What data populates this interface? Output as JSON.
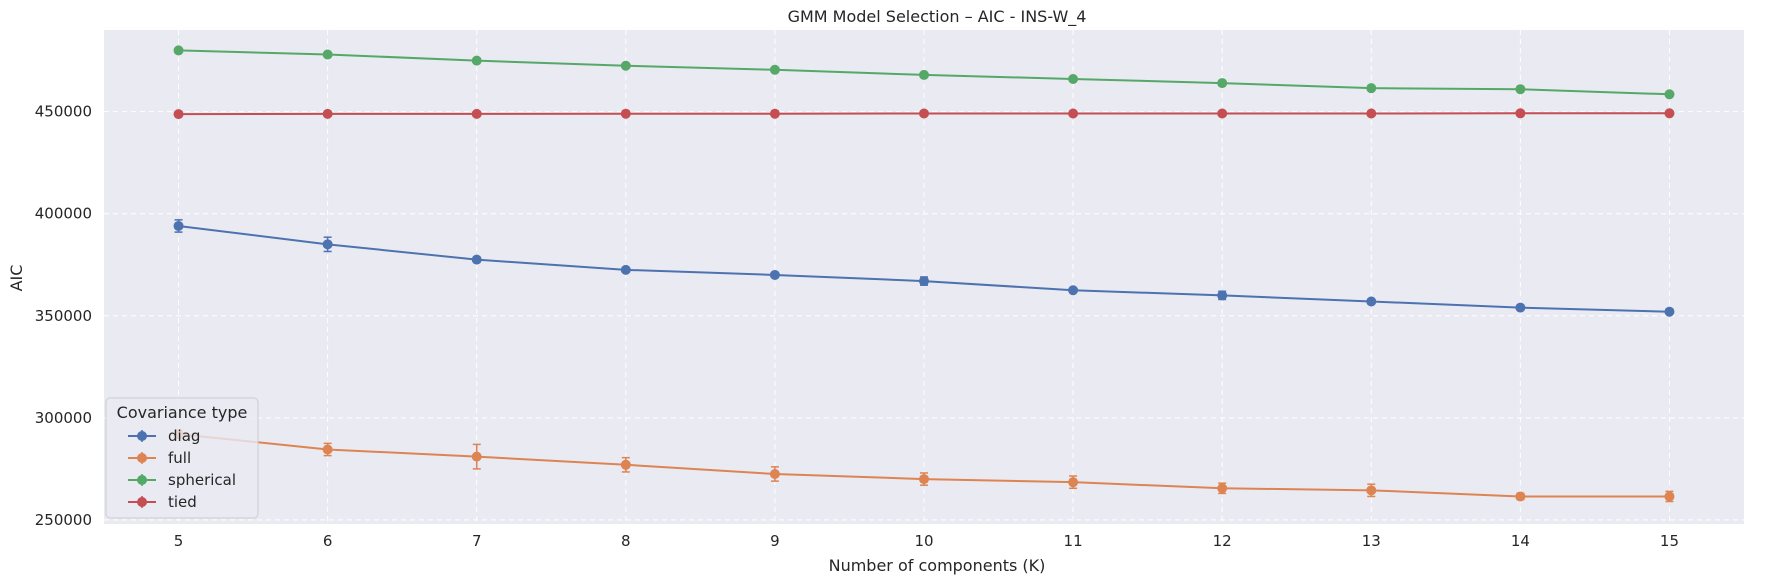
{
  "chart_data": {
    "type": "line",
    "title": "GMM Model Selection – AIC - INS-W_4",
    "xlabel": "Number of components (K)",
    "ylabel": "AIC",
    "x": [
      5,
      6,
      7,
      8,
      9,
      10,
      11,
      12,
      13,
      14,
      15
    ],
    "xlim": [
      4.5,
      15.5
    ],
    "ylim": [
      248000,
      490000
    ],
    "yticks": [
      250000,
      300000,
      350000,
      400000,
      450000
    ],
    "grid": true,
    "legend_title": "Covariance type",
    "legend_position": "bottom-left",
    "series": [
      {
        "name": "diag",
        "color": "#4c72b0",
        "values": [
          394000,
          385000,
          377500,
          372500,
          370000,
          367000,
          362500,
          360000,
          357000,
          354000,
          352000
        ],
        "errors": [
          3000,
          3500,
          1000,
          1000,
          1000,
          2000,
          1000,
          2000,
          1000,
          1000,
          1000
        ]
      },
      {
        "name": "full",
        "color": "#dd8452",
        "values": [
          292000,
          284500,
          281000,
          277000,
          272500,
          270000,
          268500,
          265500,
          264500,
          261500,
          261500
        ],
        "errors": [
          2000,
          3000,
          6000,
          3500,
          3500,
          3000,
          3000,
          2500,
          3000,
          1500,
          2500
        ]
      },
      {
        "name": "spherical",
        "color": "#55a868",
        "values": [
          480000,
          478000,
          475000,
          472500,
          470500,
          468000,
          466000,
          464000,
          461500,
          461000,
          458500
        ],
        "errors": [
          500,
          500,
          500,
          500,
          500,
          500,
          500,
          500,
          500,
          500,
          500
        ]
      },
      {
        "name": "tied",
        "color": "#c44e52",
        "values": [
          448800,
          448900,
          448900,
          449000,
          449000,
          449100,
          449100,
          449100,
          449100,
          449200,
          449200
        ],
        "errors": [
          300,
          300,
          300,
          300,
          300,
          300,
          300,
          300,
          300,
          300,
          300
        ]
      }
    ]
  }
}
